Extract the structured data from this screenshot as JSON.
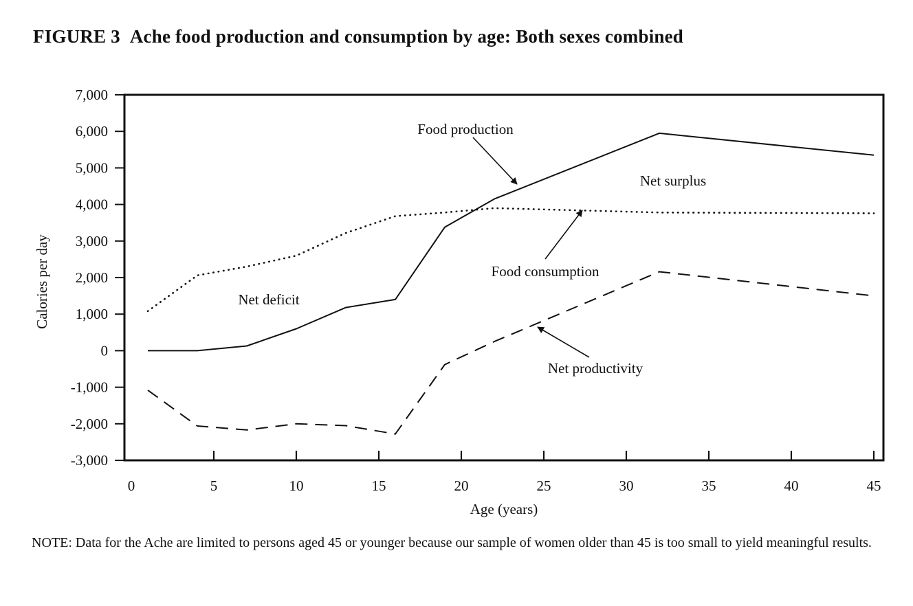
{
  "figure": {
    "label": "FIGURE 3",
    "title": "Ache food production and consumption by age:  Both sexes combined",
    "note": "NOTE:  Data for the Ache are limited to persons aged 45 or younger because our sample of women older than 45 is too small to yield meaningful results."
  },
  "chart_data": {
    "type": "line",
    "xlabel": "Age (years)",
    "ylabel": "Calories per day",
    "xlim": [
      0,
      45
    ],
    "ylim": [
      -3000,
      7000
    ],
    "x_ticks": [
      0,
      5,
      10,
      15,
      20,
      25,
      30,
      35,
      40,
      45
    ],
    "y_ticks": [
      7000,
      6000,
      5000,
      4000,
      3000,
      2000,
      1000,
      0,
      -1000,
      -2000,
      -3000
    ],
    "y_tick_labels": [
      "7,000",
      "6,000",
      "5,000",
      "4,000",
      "3,000",
      "2,000",
      "1,000",
      "0",
      "-1,000",
      "-2,000",
      "-3,000"
    ],
    "grid": false,
    "series": [
      {
        "name": "Food production",
        "style": "solid",
        "x": [
          1,
          4,
          7,
          10,
          13,
          16,
          19,
          22,
          32,
          45
        ],
        "values": [
          0,
          0,
          130,
          600,
          1180,
          1400,
          3380,
          4150,
          5950,
          5350
        ]
      },
      {
        "name": "Food consumption",
        "style": "dotted",
        "x": [
          1,
          4,
          7,
          10,
          13,
          16,
          19,
          22,
          32,
          45
        ],
        "values": [
          1080,
          2060,
          2300,
          2600,
          3220,
          3680,
          3780,
          3900,
          3780,
          3760
        ]
      },
      {
        "name": "Net productivity",
        "style": "dashed",
        "x": [
          1,
          4,
          7,
          10,
          13,
          16,
          19,
          22,
          32,
          45
        ],
        "values": [
          -1080,
          -2060,
          -2170,
          -2000,
          -2050,
          -2280,
          -380,
          250,
          2160,
          1500
        ]
      }
    ],
    "annotations": [
      {
        "text": "Food production",
        "points_to": "Food production"
      },
      {
        "text": "Food consumption",
        "points_to": "Food consumption"
      },
      {
        "text": "Net productivity",
        "points_to": "Net productivity"
      },
      {
        "text": "Net surplus"
      },
      {
        "text": "Net deficit"
      }
    ]
  }
}
